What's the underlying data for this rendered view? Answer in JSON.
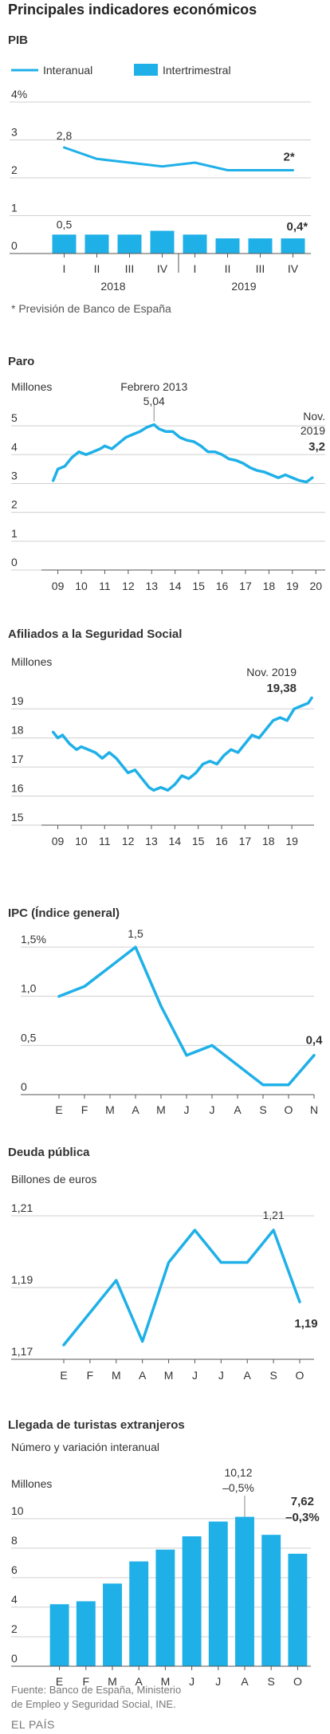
{
  "header": {
    "title": "Principales indicadores económicos"
  },
  "colors": {
    "accent": "#1fb0e8",
    "grid": "#cfcfcf",
    "axis": "#555555",
    "text": "#333333"
  },
  "chart_data": [
    {
      "id": "pib",
      "type": "bar+line",
      "title": "PIB",
      "legend": {
        "line_label": "Interanual",
        "bar_label": "Intertrimestral"
      },
      "y_ticks": [
        "4%",
        "3",
        "2",
        "1",
        "0"
      ],
      "ylim": [
        0,
        4
      ],
      "categories": [
        "I",
        "II",
        "III",
        "IV",
        "I",
        "II",
        "III",
        "IV"
      ],
      "years": [
        "2018",
        "2019"
      ],
      "series": [
        {
          "name": "Interanual",
          "kind": "line",
          "values": [
            2.8,
            2.5,
            2.4,
            2.3,
            2.4,
            2.2,
            2.2,
            2.2
          ]
        },
        {
          "name": "Intertrimestral",
          "kind": "bar",
          "values": [
            0.5,
            0.5,
            0.5,
            0.6,
            0.5,
            0.4,
            0.4,
            0.4
          ]
        }
      ],
      "annotations": {
        "first_line": "2,8",
        "last_line": "2*",
        "first_bar": "0,5",
        "last_bar": "0,4*"
      },
      "footnote": "* Previsión de Banco de España"
    },
    {
      "id": "paro",
      "type": "line",
      "title": "Paro",
      "ylabel": "Millones",
      "y_ticks": [
        "5",
        "4",
        "3",
        "2",
        "1",
        "0"
      ],
      "ylim": [
        0,
        5.5
      ],
      "x_ticks": [
        "09",
        "10",
        "11",
        "12",
        "13",
        "14",
        "15",
        "16",
        "17",
        "18",
        "19",
        "20"
      ],
      "x": [
        2008.8,
        2009.0,
        2009.3,
        2009.6,
        2009.9,
        2010.2,
        2010.5,
        2010.8,
        2011.0,
        2011.3,
        2011.6,
        2011.9,
        2012.2,
        2012.5,
        2012.8,
        2013.1,
        2013.3,
        2013.6,
        2013.9,
        2014.2,
        2014.5,
        2014.8,
        2015.1,
        2015.4,
        2015.7,
        2016.0,
        2016.3,
        2016.6,
        2016.9,
        2017.2,
        2017.5,
        2017.8,
        2018.1,
        2018.4,
        2018.7,
        2019.0,
        2019.3,
        2019.6,
        2019.85
      ],
      "values": [
        3.1,
        3.5,
        3.6,
        3.9,
        4.1,
        4.0,
        4.1,
        4.2,
        4.3,
        4.2,
        4.4,
        4.6,
        4.7,
        4.8,
        4.95,
        5.04,
        4.9,
        4.8,
        4.8,
        4.6,
        4.5,
        4.45,
        4.3,
        4.1,
        4.1,
        4.0,
        3.85,
        3.8,
        3.7,
        3.55,
        3.45,
        3.4,
        3.3,
        3.2,
        3.3,
        3.2,
        3.1,
        3.05,
        3.2
      ],
      "annotations": {
        "peak_label": "Febrero 2013",
        "peak_value": "5,04",
        "last_label_1": "Nov.",
        "last_label_2": "2019",
        "last_value": "3,2"
      }
    },
    {
      "id": "afiliados",
      "type": "line",
      "title": "Afiliados a la Seguridad Social",
      "ylabel": "Millones",
      "y_ticks": [
        "19",
        "18",
        "17",
        "16",
        "15"
      ],
      "ylim": [
        15,
        19.8
      ],
      "x_ticks": [
        "09",
        "10",
        "11",
        "12",
        "13",
        "14",
        "15",
        "16",
        "17",
        "18",
        "19"
      ],
      "x": [
        2008.8,
        2009.0,
        2009.2,
        2009.5,
        2009.8,
        2010.0,
        2010.3,
        2010.6,
        2010.9,
        2011.2,
        2011.5,
        2011.8,
        2012.0,
        2012.3,
        2012.6,
        2012.9,
        2013.1,
        2013.4,
        2013.7,
        2014.0,
        2014.3,
        2014.6,
        2014.9,
        2015.2,
        2015.5,
        2015.8,
        2016.1,
        2016.4,
        2016.7,
        2017.0,
        2017.3,
        2017.6,
        2017.9,
        2018.2,
        2018.5,
        2018.8,
        2019.1,
        2019.4,
        2019.7,
        2019.85
      ],
      "values": [
        18.2,
        18.0,
        18.1,
        17.8,
        17.6,
        17.7,
        17.6,
        17.5,
        17.3,
        17.5,
        17.3,
        17.0,
        16.8,
        16.9,
        16.6,
        16.3,
        16.2,
        16.3,
        16.2,
        16.4,
        16.7,
        16.6,
        16.8,
        17.1,
        17.2,
        17.1,
        17.4,
        17.6,
        17.5,
        17.8,
        18.1,
        18.0,
        18.3,
        18.6,
        18.7,
        18.6,
        19.0,
        19.1,
        19.2,
        19.38
      ],
      "annotations": {
        "last_label": "Nov. 2019",
        "last_value": "19,38"
      }
    },
    {
      "id": "ipc",
      "type": "line",
      "title": "IPC (Índice general)",
      "y_ticks": [
        "1,5%",
        "1,0",
        "0,5",
        "0"
      ],
      "ylim": [
        0,
        1.5
      ],
      "categories": [
        "E",
        "F",
        "M",
        "A",
        "M",
        "J",
        "J",
        "A",
        "S",
        "O",
        "N"
      ],
      "values": [
        1.0,
        1.1,
        1.3,
        1.5,
        0.9,
        0.4,
        0.5,
        0.3,
        0.1,
        0.1,
        0.4
      ],
      "annotations": {
        "peak_value": "1,5",
        "last_value": "0,4"
      }
    },
    {
      "id": "deuda",
      "type": "line",
      "title": "Deuda pública",
      "ylabel": "Billones de euros",
      "y_ticks": [
        "1,21",
        "1,19",
        "1,17"
      ],
      "ylim": [
        1.17,
        1.21
      ],
      "categories": [
        "E",
        "F",
        "M",
        "A",
        "M",
        "J",
        "J",
        "A",
        "S",
        "O"
      ],
      "values": [
        1.174,
        1.183,
        1.192,
        1.175,
        1.197,
        1.206,
        1.197,
        1.197,
        1.206,
        1.186
      ],
      "annotations": {
        "peak_value": "1,21",
        "last_value": "1,19"
      }
    },
    {
      "id": "turistas",
      "type": "bar",
      "title": "Llegada de turistas extranjeros",
      "subtitle": "Número y variación interanual",
      "ylabel": "Millones",
      "y_ticks": [
        "10",
        "8",
        "6",
        "4",
        "2",
        "0"
      ],
      "ylim": [
        0,
        10.8
      ],
      "categories": [
        "E",
        "F",
        "M",
        "A",
        "M",
        "J",
        "J",
        "A",
        "S",
        "O"
      ],
      "values": [
        4.2,
        4.4,
        5.6,
        7.1,
        7.9,
        8.8,
        9.8,
        10.12,
        8.9,
        7.62
      ],
      "annotations": {
        "peak_value": "10,12",
        "peak_change": "–0,5%",
        "last_value": "7,62",
        "last_change": "–0,3%"
      }
    }
  ],
  "footer": {
    "source_line1": "Fuente: Banco de España, Ministerio",
    "source_line2": "de Empleo y Seguridad Social, INE.",
    "brand": "EL PAÍS"
  }
}
